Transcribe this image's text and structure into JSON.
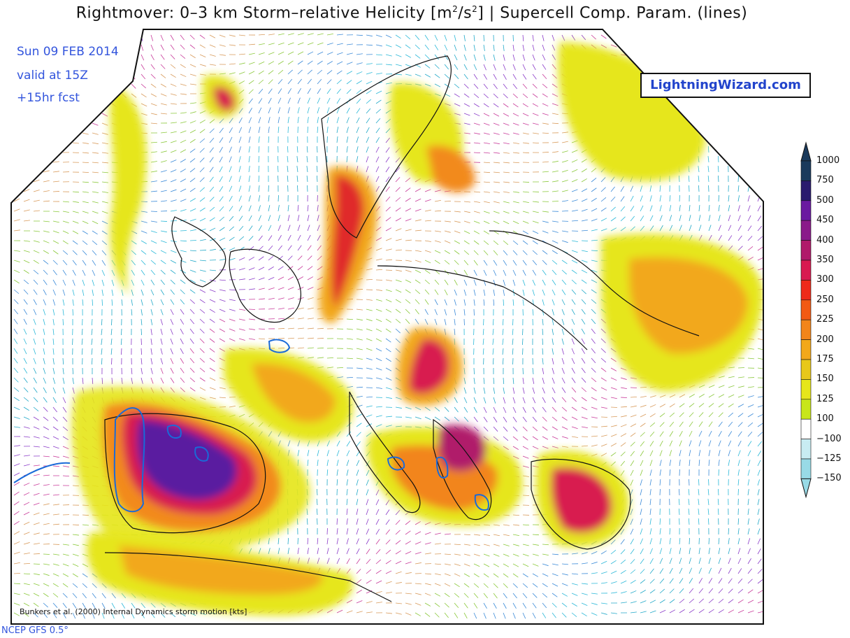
{
  "header": {
    "title_prefix": "Rightmover: 0–3 km Storm–relative Helicity [m",
    "title_sup1": "2",
    "title_mid": "/s",
    "title_sup2": "2",
    "title_suffix": "] | Supercell Comp. Param. (lines)"
  },
  "info": {
    "date": "Sun 09 FEB 2014",
    "valid": "valid at 15Z",
    "forecast": "+15hr fcst"
  },
  "logo": {
    "text": "LightningWizard.com"
  },
  "colorbar": {
    "labels": [
      "1000",
      "750",
      "500",
      "450",
      "400",
      "350",
      "300",
      "250",
      "225",
      "200",
      "175",
      "150",
      "125",
      "100",
      "−100",
      "−125",
      "−150"
    ],
    "colors": [
      "#1a3a5c",
      "#2a1a6e",
      "#6a1aa0",
      "#8a1a8a",
      "#b01a6a",
      "#d81a50",
      "#ee2a1a",
      "#f25a14",
      "#f2851a",
      "#f2a81a",
      "#e8c81a",
      "#e6e61a",
      "#c8e61a",
      "#ffffff",
      "#c8ecf2",
      "#98dae6"
    ]
  },
  "footer": {
    "credit": "Bunkers et al. (2000) Internal Dynamics storm motion [kts]",
    "source": "NCEP GFS 0.5°"
  }
}
